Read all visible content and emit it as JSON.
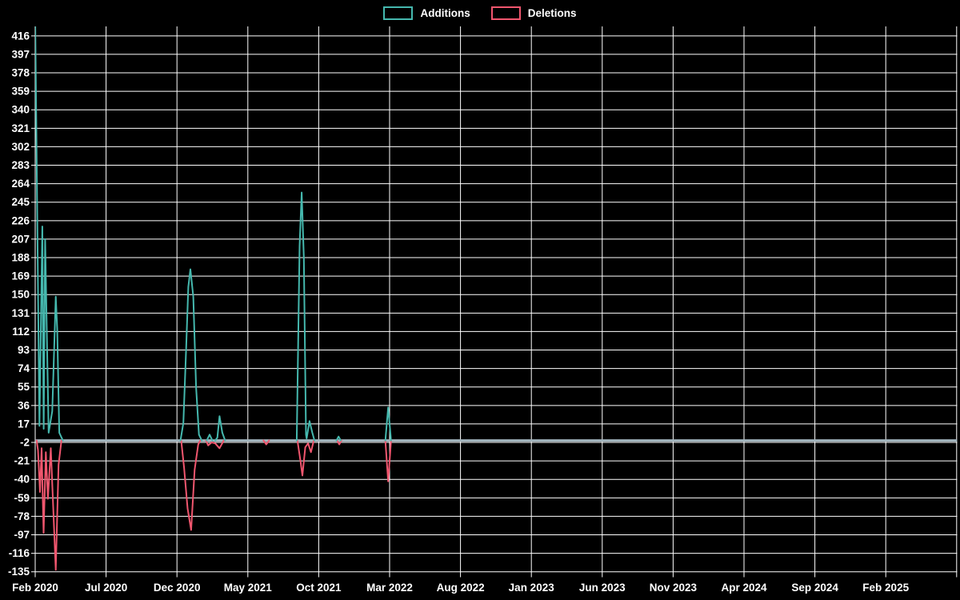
{
  "legend": {
    "items": [
      {
        "label": "Additions",
        "color": "#45b8ae"
      },
      {
        "label": "Deletions",
        "color": "#f0566e"
      }
    ]
  },
  "colors": {
    "background": "#000000",
    "gridline": "#ffffff",
    "tick_text": "#ffffff",
    "additions": "#45b8ae",
    "deletions": "#f0566e",
    "zero_baseline": "#a3b6bf"
  },
  "chart_data": {
    "type": "line",
    "title": "",
    "xlabel": "",
    "ylabel": "",
    "grid": "on",
    "legend_position": "top-center",
    "x_axis": {
      "unit": "months since Feb 2020",
      "tick_labels": [
        "Feb 2020",
        "Jul 2020",
        "Dec 2020",
        "May 2021",
        "Oct 2021",
        "Mar 2022",
        "Aug 2022",
        "Jan 2023",
        "Jun 2023",
        "Nov 2023",
        "Apr 2024",
        "Sep 2024",
        "Feb 2025"
      ],
      "tick_months": [
        0,
        5,
        10,
        15,
        20,
        25,
        30,
        35,
        40,
        45,
        50,
        55,
        60
      ],
      "unlabeled_gridline_month": 65,
      "x_max_months": 65.2
    },
    "y_axis": {
      "tick_values": [
        416,
        397,
        378,
        359,
        340,
        321,
        302,
        283,
        264,
        245,
        226,
        207,
        188,
        169,
        150,
        131,
        112,
        93,
        74,
        55,
        36,
        17,
        -2,
        -21,
        -40,
        -59,
        -78,
        -97,
        -116,
        -135
      ],
      "min": -135,
      "max": 435,
      "note": "first Feb 2020 additions spike is clipped at top of plot area"
    },
    "baseline": {
      "value": 0,
      "color": "#a3b6bf"
    },
    "series": [
      {
        "name": "Additions",
        "color": "#45b8ae",
        "zero_elsewhere": true,
        "segments": [
          [
            [
              0,
              433
            ],
            [
              0.3,
              15
            ],
            [
              0.5,
              220
            ],
            [
              0.6,
              12
            ],
            [
              0.7,
              207
            ],
            [
              0.95,
              8
            ],
            [
              1.2,
              30
            ],
            [
              1.45,
              148
            ],
            [
              1.55,
              115
            ],
            [
              1.7,
              8
            ],
            [
              1.95,
              0
            ]
          ],
          [
            [
              10.25,
              0
            ],
            [
              10.45,
              18
            ],
            [
              10.65,
              95
            ],
            [
              10.8,
              158
            ],
            [
              10.95,
              176
            ],
            [
              11.15,
              148
            ],
            [
              11.35,
              55
            ],
            [
              11.55,
              6
            ],
            [
              11.75,
              0
            ]
          ],
          [
            [
              12.1,
              0
            ],
            [
              12.3,
              6
            ],
            [
              12.5,
              0
            ]
          ],
          [
            [
              12.7,
              0
            ],
            [
              12.85,
              3
            ],
            [
              13.0,
              25
            ],
            [
              13.2,
              8
            ],
            [
              13.4,
              0
            ]
          ],
          [
            [
              18.45,
              0
            ],
            [
              18.65,
              200
            ],
            [
              18.8,
              255
            ],
            [
              18.95,
              188
            ],
            [
              19.1,
              6
            ],
            [
              19.15,
              2
            ],
            [
              19.35,
              20
            ],
            [
              19.55,
              8
            ],
            [
              19.7,
              0
            ]
          ],
          [
            [
              21.25,
              0
            ],
            [
              21.4,
              4
            ],
            [
              21.55,
              0
            ]
          ],
          [
            [
              24.7,
              0
            ],
            [
              24.9,
              34
            ],
            [
              25.1,
              0
            ]
          ]
        ]
      },
      {
        "name": "Deletions",
        "color": "#f0566e",
        "zero_elsewhere": true,
        "segments": [
          [
            [
              0.1,
              0
            ],
            [
              0.2,
              -10
            ],
            [
              0.34,
              -53
            ],
            [
              0.45,
              -8
            ],
            [
              0.59,
              -95
            ],
            [
              0.75,
              -12
            ],
            [
              0.9,
              -60
            ],
            [
              1.1,
              -8
            ],
            [
              1.45,
              -133
            ],
            [
              1.65,
              -25
            ],
            [
              1.85,
              0
            ]
          ],
          [
            [
              10.3,
              0
            ],
            [
              10.5,
              -28
            ],
            [
              10.75,
              -70
            ],
            [
              11.0,
              -92
            ],
            [
              11.25,
              -30
            ],
            [
              11.5,
              -4
            ],
            [
              11.65,
              0
            ]
          ],
          [
            [
              12.05,
              0
            ],
            [
              12.2,
              -5
            ],
            [
              12.45,
              -2
            ],
            [
              12.7,
              -3
            ],
            [
              13.0,
              -8
            ],
            [
              13.3,
              0
            ]
          ],
          [
            [
              16.1,
              0
            ],
            [
              16.3,
              -4
            ],
            [
              16.5,
              0
            ]
          ],
          [
            [
              18.5,
              0
            ],
            [
              18.7,
              -20
            ],
            [
              18.85,
              -36
            ],
            [
              19.05,
              -7
            ],
            [
              19.25,
              -3
            ],
            [
              19.45,
              -12
            ],
            [
              19.65,
              0
            ]
          ],
          [
            [
              21.3,
              0
            ],
            [
              21.45,
              -4
            ],
            [
              21.6,
              0
            ]
          ],
          [
            [
              24.7,
              0
            ],
            [
              24.9,
              -42
            ],
            [
              25.1,
              0
            ]
          ]
        ]
      }
    ]
  }
}
